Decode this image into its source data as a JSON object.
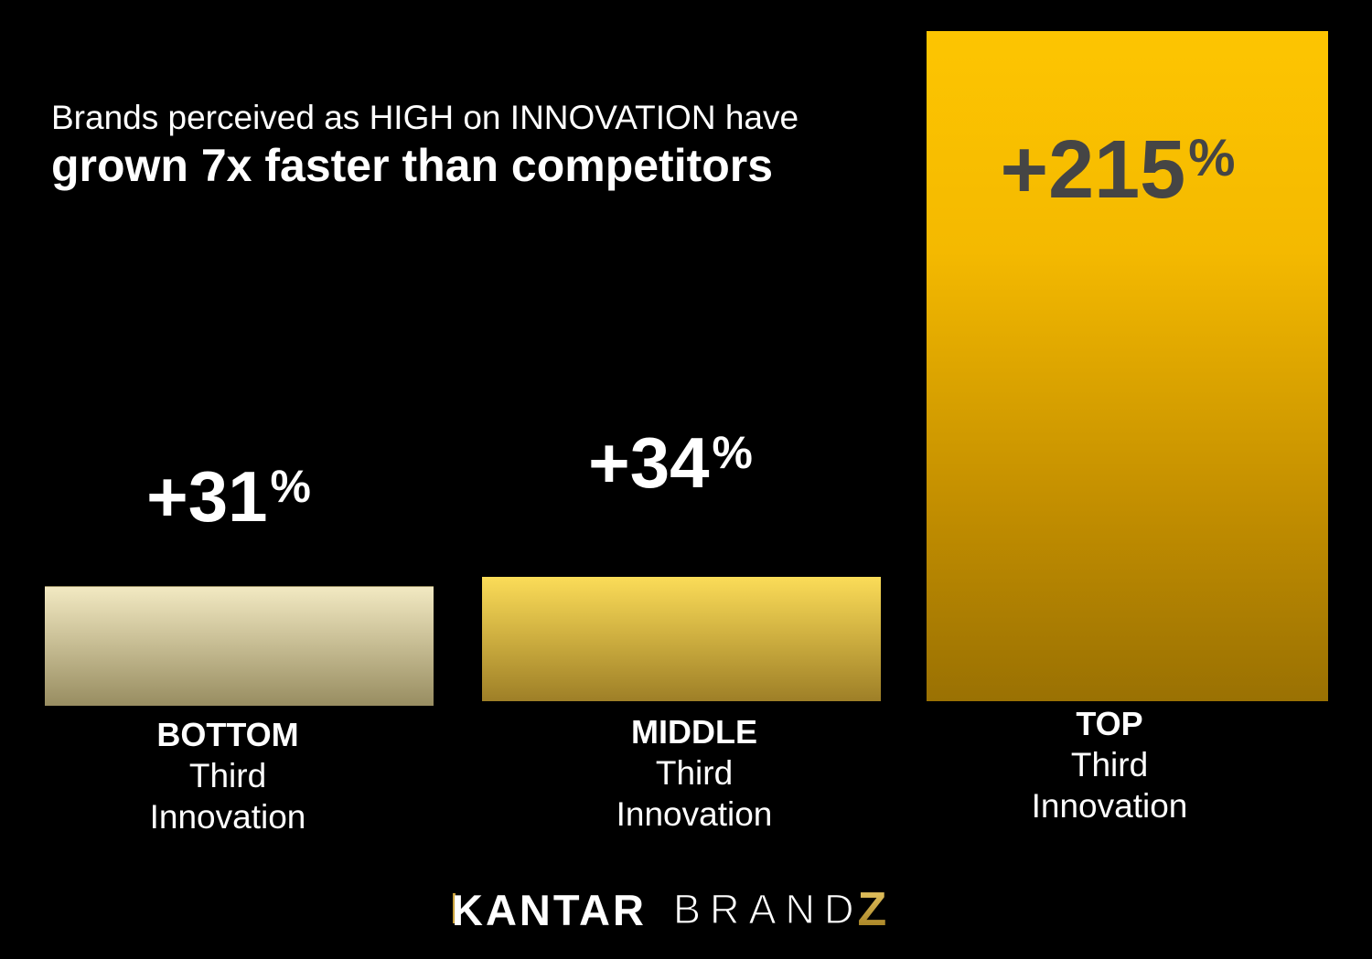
{
  "title": {
    "line1": "Brands perceived as HIGH on INNOVATION have",
    "line2": "grown 7x faster than competitors"
  },
  "chart_data": {
    "type": "bar",
    "categories": [
      "BOTTOM Third Innovation",
      "MIDDLE Third Innovation",
      "TOP Third Innovation"
    ],
    "values": [
      31,
      34,
      215
    ],
    "value_labels": [
      "+31%",
      "+34%",
      "+215%"
    ],
    "title": "Brands perceived as HIGH on INNOVATION have grown 7x faster than competitors",
    "xlabel": "",
    "ylabel": "",
    "legend": "none",
    "grid": false,
    "background": "#000000"
  },
  "bars": [
    {
      "value": "+31",
      "pct_symbol": "%",
      "tier": "BOTTOM",
      "sub1": "Third",
      "sub2": "Innovation"
    },
    {
      "value": "+34",
      "pct_symbol": "%",
      "tier": "MIDDLE",
      "sub1": "Third",
      "sub2": "Innovation"
    },
    {
      "value": "+215",
      "pct_symbol": "%",
      "tier": "TOP",
      "sub1": "Third",
      "sub2": "Innovation"
    }
  ],
  "colors": {
    "background": "#000000",
    "text": "#FFFFFF",
    "value_dark": "#454545",
    "gold_accent": "#C9A13B",
    "bar1_stops": [
      "#F2E9C2 0%",
      "#988D61 100%"
    ],
    "bar2_stops": [
      "#FBDC58 0%",
      "#9E7F27 100%"
    ],
    "bar3_stops": [
      "#FDC501 0%",
      "#F4B900 33%",
      "#C18D00 72%",
      "#9A7103 100%"
    ],
    "z_gradient_top": "#E9C966",
    "z_gradient_bottom": "#9F7A1C"
  },
  "logo": {
    "kantar": "KANTAR",
    "brand": "BRAND",
    "z": "Z"
  }
}
